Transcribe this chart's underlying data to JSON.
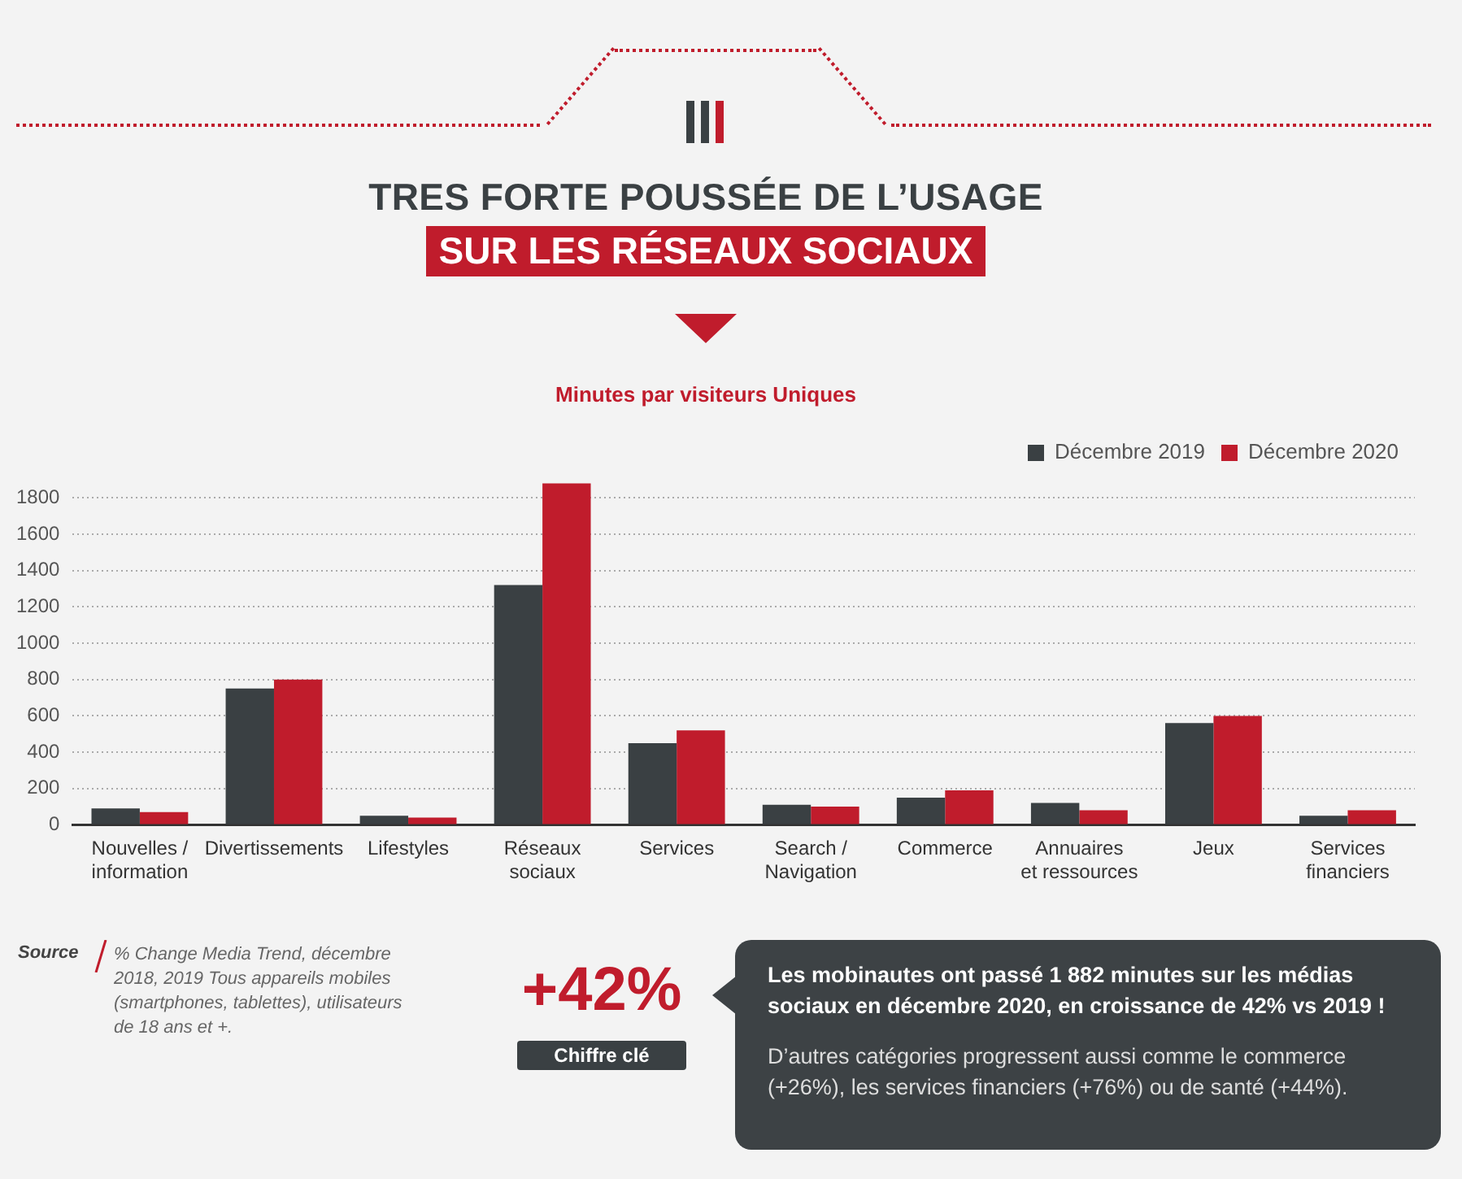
{
  "chart_data": {
    "type": "bar",
    "title": "TRES FORTE POUSSÉE DE L’USAGE",
    "subtitle": "SUR LES RÉSEAUX SOCIAUX",
    "categories": [
      "Nouvelles / information",
      "Divertissements",
      "Lifestyles",
      "Réseaux sociaux",
      "Services",
      "Search / Navigation",
      "Commerce",
      "Annuaires et ressources",
      "Jeux",
      "Services financiers"
    ],
    "series": [
      {
        "name": "Décembre 2019",
        "color": "#3a4043",
        "values": [
          90,
          750,
          50,
          1320,
          450,
          110,
          150,
          120,
          560,
          50
        ]
      },
      {
        "name": "Décembre 2020",
        "color": "#c01c2c",
        "values": [
          70,
          800,
          40,
          1880,
          520,
          100,
          190,
          80,
          600,
          80
        ]
      }
    ],
    "ylim": [
      0,
      1900
    ],
    "yticks": [
      0,
      200,
      400,
      600,
      800,
      1000,
      1200,
      1400,
      1600,
      1800
    ],
    "grid": "y",
    "legend": "top right",
    "annotations": [
      "Minutes par visiteurs Uniques",
      "Source",
      "% Change Media Trend, décembre 2018, 2019 Tous appareils mobiles (smartphones, tablettes), utilisateurs de 18 ans et +.",
      "+42%",
      "Chiffre clé",
      "Les mobinautes ont passé 1 882 minutes sur les médias sociaux en décembre 2020, en croissance de 42% vs 2019 !",
      "D’autres catégories progressent aussi comme le commerce (+26%), les services financiers (+76%) ou de santé (+44%)."
    ]
  }
}
